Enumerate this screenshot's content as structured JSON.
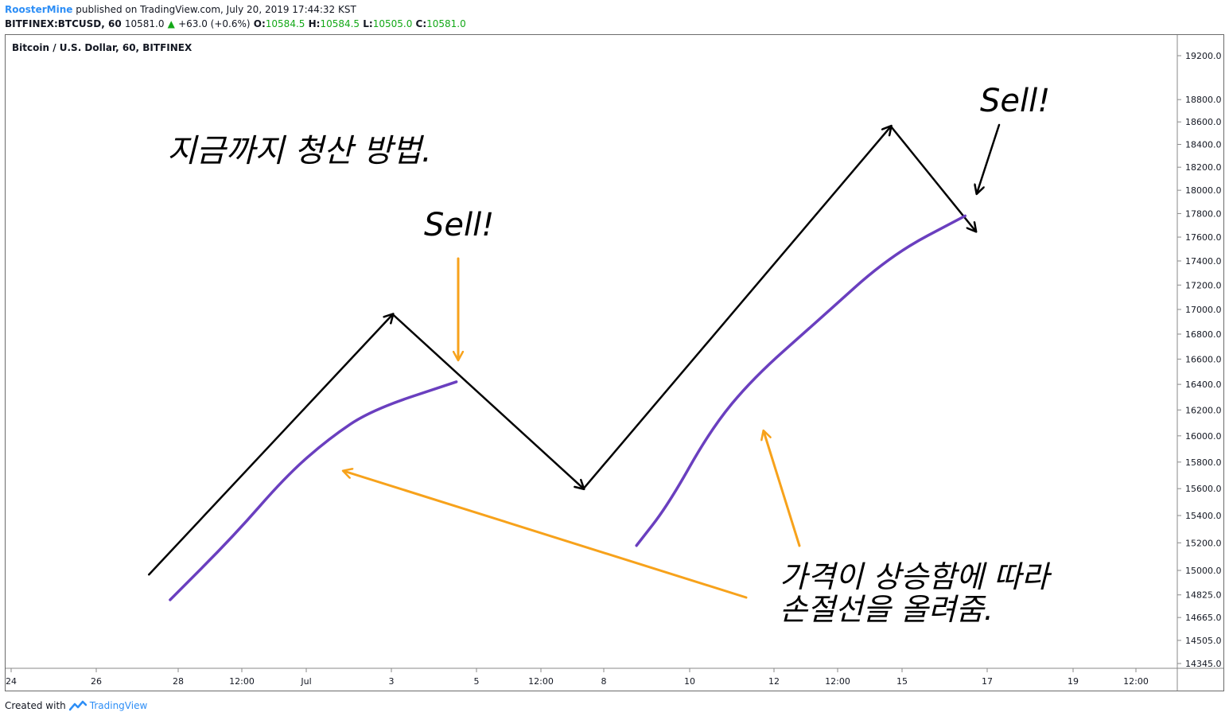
{
  "header": {
    "author": "RoosterMine",
    "published": "published on TradingView.com, July 20, 2019 17:44:32 KST",
    "symbol": "BITFINEX:BTCUSD, 60",
    "last": "10581.0",
    "arrow": "▲",
    "change": "+63.0 (+0.6%)",
    "o_label": "O:",
    "o_value": "10584.5",
    "h_label": "H:",
    "h_value": "10584.5",
    "l_label": "L:",
    "l_value": "10505.0",
    "c_label": "C:",
    "c_value": "10581.0"
  },
  "pane_title": "Bitcoin / U.S. Dollar, 60, BITFINEX",
  "footer": {
    "created_with": "Created with",
    "brand": "TradingView",
    "logo_icon": "tradingview-logo-icon"
  },
  "annotations": {
    "title": "지금까지 청산 방법.",
    "sell_1": "Sell!",
    "sell_2": "Sell!",
    "note_line1": "가격이 상승함에 따라",
    "note_line2": "손절선을 올려줌."
  },
  "colors": {
    "price_path": "#000000",
    "stop_line": "#6a3fbf",
    "arrow_orange": "#f7a21b",
    "up_green": "#13a817",
    "brand_blue": "#2d8ef6"
  },
  "chart_data": {
    "type": "line",
    "y_scale": "log",
    "y_ticks": [
      "19200.0",
      "18800.0",
      "18600.0",
      "18400.0",
      "18200.0",
      "18000.0",
      "17800.0",
      "17600.0",
      "17400.0",
      "17200.0",
      "17000.0",
      "16800.0",
      "16600.0",
      "16400.0",
      "16200.0",
      "16000.0",
      "15800.0",
      "15600.0",
      "15400.0",
      "15200.0",
      "15000.0",
      "14825.0",
      "14665.0",
      "14505.0",
      "14345.0"
    ],
    "x_ticks": [
      "24",
      "26",
      "28",
      "12:00",
      "Jul",
      "3",
      "5",
      "12:00",
      "8",
      "10",
      "12",
      "12:00",
      "15",
      "17",
      "19",
      "12:00"
    ],
    "series": [
      {
        "values": [
          {
            "x": "27 06:00",
            "y": 14970
          },
          {
            "x": "3 00:00",
            "y": 16960
          },
          {
            "x": "7 12:00",
            "y": 15600
          },
          {
            "x": "14 18:00",
            "y": 18560
          },
          {
            "x": "16 18:00",
            "y": 17650
          }
        ]
      },
      {
        "values": [
          {
            "x": "27 18:00",
            "y": 14790
          },
          {
            "x": "29 06:00",
            "y": 15250
          },
          {
            "x": "30 12:00",
            "y": 15700
          },
          {
            "x": "1 12:00",
            "y": 15980
          },
          {
            "x": "2 12:00",
            "y": 16200
          },
          {
            "x": "4 12:00",
            "y": 16420
          },
          {
            "x": "8 18:00",
            "y": 15180
          },
          {
            "x": "9 12:00",
            "y": 15480
          },
          {
            "x": "10 12:00",
            "y": 16050
          },
          {
            "x": "11 12:00",
            "y": 16450
          },
          {
            "x": "13 00:00",
            "y": 16900
          },
          {
            "x": "14 18:00",
            "y": 17450
          },
          {
            "x": "16 12:00",
            "y": 17780
          }
        ]
      }
    ]
  }
}
